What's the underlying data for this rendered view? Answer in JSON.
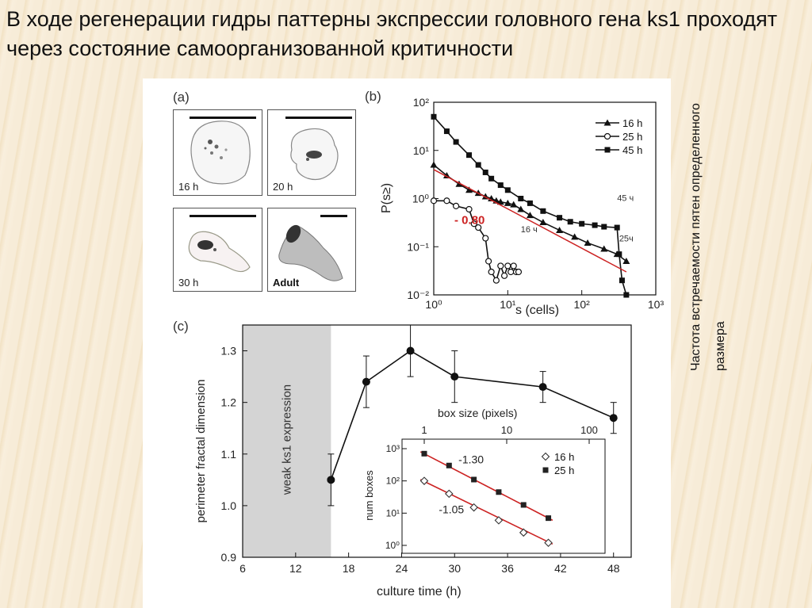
{
  "slide": {
    "title": "В ходе регенерации гидры паттерны экспрессии головного гена ks1 проходят через состояние самоорганизованной критичности",
    "side_caption": "Частота встречаемости пятен определенного размера"
  },
  "panel_a": {
    "label": "(a)",
    "cells": [
      {
        "label": "16 h"
      },
      {
        "label": "20 h"
      },
      {
        "label": "30 h"
      },
      {
        "label": "Adult"
      }
    ]
  },
  "chart_data": [
    {
      "id": "b",
      "type": "line",
      "panel_label": "(b)",
      "xlabel": "s (cells)",
      "ylabel": "P(s≥)",
      "xscale": "log",
      "yscale": "log",
      "xlim": [
        1,
        1000
      ],
      "ylim": [
        0.01,
        100
      ],
      "x_tick_labels": [
        "10⁰",
        "10¹",
        "10²",
        "10³"
      ],
      "y_tick_labels": [
        "10²",
        "10¹",
        "10⁰",
        "10⁻¹",
        "10⁻²"
      ],
      "legend_position": "top-right",
      "series": [
        {
          "name": "16 h",
          "marker": "triangle",
          "color": "#111111",
          "x": [
            1,
            1.5,
            2.2,
            3,
            4,
            5,
            6,
            7,
            8,
            10,
            12,
            15,
            20,
            30,
            50,
            80,
            120,
            200,
            300,
            400
          ],
          "y": [
            5,
            3,
            2,
            1.5,
            1.3,
            1.1,
            1.0,
            0.9,
            0.85,
            0.8,
            0.75,
            0.6,
            0.45,
            0.32,
            0.22,
            0.16,
            0.12,
            0.09,
            0.07,
            0.05
          ]
        },
        {
          "name": "25 h",
          "marker": "circle-open",
          "color": "#111111",
          "x": [
            1,
            1.5,
            2,
            3,
            3.5,
            4,
            5,
            5.5,
            6,
            7,
            8,
            9,
            10,
            11,
            12,
            13,
            14
          ],
          "y": [
            0.9,
            0.9,
            0.7,
            0.6,
            0.3,
            0.25,
            0.15,
            0.05,
            0.03,
            0.02,
            0.04,
            0.025,
            0.04,
            0.03,
            0.04,
            0.03,
            0.03
          ]
        },
        {
          "name": "45 h",
          "marker": "square",
          "color": "#111111",
          "x": [
            1,
            1.5,
            2,
            3,
            4,
            5,
            6,
            8,
            10,
            15,
            20,
            30,
            50,
            70,
            100,
            150,
            200,
            300,
            320,
            350,
            400
          ],
          "y": [
            50,
            25,
            15,
            8,
            5,
            3.5,
            2.6,
            1.9,
            1.5,
            1.0,
            0.8,
            0.55,
            0.4,
            0.33,
            0.3,
            0.28,
            0.26,
            0.25,
            0.07,
            0.02,
            0.01
          ]
        }
      ],
      "fit_line": {
        "slope_label": "- 0.80",
        "color": "#cc2222",
        "x": [
          1,
          400
        ],
        "y": [
          4,
          0.03
        ]
      },
      "annotations": [
        {
          "text": "16 ч",
          "x": 15,
          "y": 0.2
        },
        {
          "text": "45 ч",
          "x": 300,
          "y": 0.9
        },
        {
          "text": "25ч",
          "x": 320,
          "y": 0.13
        }
      ]
    },
    {
      "id": "c",
      "type": "line",
      "panel_label": "(c)",
      "xlabel": "culture time  (h)",
      "ylabel": "perimeter fractal dimension",
      "xlim": [
        6,
        50
      ],
      "ylim": [
        0.9,
        1.35
      ],
      "x_ticks": [
        6,
        12,
        18,
        24,
        30,
        36,
        42,
        48
      ],
      "y_ticks": [
        0.9,
        1.0,
        1.1,
        1.2,
        1.3
      ],
      "y_tick_labels": [
        "0.9",
        "1.0",
        "1.1",
        "1.2",
        "1.3"
      ],
      "shaded_region": {
        "x_from": 6,
        "x_to": 16,
        "label": "weak ks1 expression"
      },
      "series": [
        {
          "name": "",
          "x": [
            16,
            20,
            25,
            30,
            40,
            48
          ],
          "y": [
            1.05,
            1.24,
            1.3,
            1.25,
            1.23,
            1.17
          ],
          "yerr": [
            0.05,
            0.05,
            0.05,
            0.05,
            0.03,
            0.03
          ]
        }
      ]
    },
    {
      "id": "c-inset",
      "type": "scatter",
      "xlabel": "box size  (pixels)",
      "ylabel": "num boxes",
      "xscale": "log",
      "yscale": "log",
      "xlim": [
        1,
        100
      ],
      "ylim": [
        1,
        1000
      ],
      "x_tick_labels": [
        "1",
        "10",
        "100"
      ],
      "y_tick_labels": [
        "10³",
        "10²",
        "10¹",
        "10⁰"
      ],
      "legend_position": "top-right",
      "series": [
        {
          "name": "16 h",
          "marker": "diamond-open",
          "x": [
            1,
            2,
            4,
            8,
            16,
            32
          ],
          "y": [
            100,
            40,
            15,
            6,
            2.5,
            1.2
          ]
        },
        {
          "name": "25 h",
          "marker": "square",
          "x": [
            1,
            2,
            4,
            8,
            16,
            32
          ],
          "y": [
            700,
            300,
            110,
            45,
            18,
            7
          ]
        }
      ],
      "fit_lines": [
        {
          "label": "-1.30",
          "color": "#cc2222",
          "x": [
            0.9,
            36
          ],
          "y": [
            800,
            6
          ]
        },
        {
          "label": "-1.05",
          "color": "#cc2222",
          "x": [
            0.9,
            36
          ],
          "y": [
            110,
            1.1
          ]
        }
      ]
    }
  ]
}
